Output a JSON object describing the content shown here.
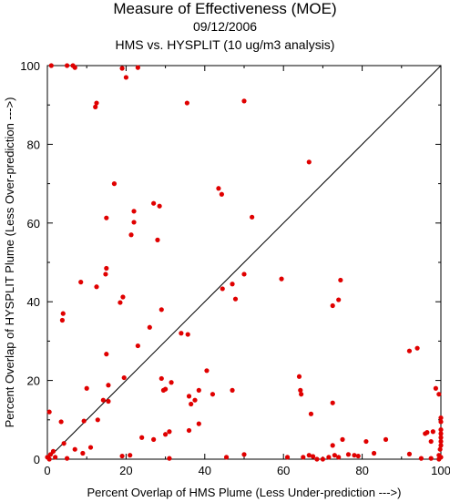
{
  "chart_data": {
    "type": "scatter",
    "title": "Measure of Effectiveness (MOE)",
    "subtitle": "09/12/2006",
    "subtitle2": "HMS vs. HYSPLIT  (10 ug/m3 analysis)",
    "xlabel": "Percent Overlap of HMS Plume (Less Under-prediction --->)",
    "ylabel": "Percent Overlap of HYSPLIT Plume (Less Over-prediction --->)",
    "xlim": [
      0,
      100
    ],
    "ylim": [
      0,
      100
    ],
    "x_ticks": [
      "0",
      "20",
      "40",
      "60",
      "80",
      "100"
    ],
    "y_ticks": [
      "0",
      "20",
      "40",
      "60",
      "80",
      "100"
    ],
    "grid": false,
    "marker_color": "#e00000",
    "reference_line": "y = x",
    "points": [
      [
        1,
        100
      ],
      [
        5,
        100
      ],
      [
        6.5,
        100
      ],
      [
        7,
        99.5
      ],
      [
        19,
        99.3
      ],
      [
        20,
        97
      ],
      [
        23,
        99.5
      ],
      [
        12.5,
        90.5
      ],
      [
        12.2,
        89.5
      ],
      [
        35.5,
        90.5
      ],
      [
        50,
        91
      ],
      [
        66.5,
        75.5
      ],
      [
        17,
        70
      ],
      [
        27,
        65
      ],
      [
        28.5,
        64.3
      ],
      [
        22,
        63
      ],
      [
        15,
        61.3
      ],
      [
        22,
        60.2
      ],
      [
        21.3,
        57
      ],
      [
        28,
        55.7
      ],
      [
        43.5,
        68.8
      ],
      [
        44.3,
        67.3
      ],
      [
        52,
        61.5
      ],
      [
        15,
        48.5
      ],
      [
        14.8,
        47
      ],
      [
        8.5,
        45
      ],
      [
        12.5,
        43.8
      ],
      [
        19.2,
        41.2
      ],
      [
        18.5,
        39.8
      ],
      [
        59.5,
        45.8
      ],
      [
        50,
        47
      ],
      [
        47,
        44.5
      ],
      [
        44.5,
        43.3
      ],
      [
        47.8,
        40.7
      ],
      [
        74.5,
        45.5
      ],
      [
        74,
        40.5
      ],
      [
        72.5,
        39
      ],
      [
        29,
        38
      ],
      [
        4,
        37
      ],
      [
        3.8,
        35.3
      ],
      [
        26,
        33.5
      ],
      [
        34,
        32
      ],
      [
        35.7,
        31.7
      ],
      [
        23,
        28.8
      ],
      [
        15,
        26.7
      ],
      [
        92,
        27.5
      ],
      [
        94,
        28.2
      ],
      [
        40.5,
        22.5
      ],
      [
        38.5,
        17.5
      ],
      [
        42,
        16.5
      ],
      [
        47,
        17.5
      ],
      [
        19.5,
        20.7
      ],
      [
        29,
        20.5
      ],
      [
        31.5,
        19.5
      ],
      [
        30,
        17.8
      ],
      [
        29.5,
        17.5
      ],
      [
        36,
        16
      ],
      [
        37.5,
        15
      ],
      [
        36.5,
        14
      ],
      [
        15.5,
        14.7
      ],
      [
        14.2,
        15
      ],
      [
        10,
        18
      ],
      [
        15.5,
        18.8
      ],
      [
        64,
        21
      ],
      [
        64.3,
        17.5
      ],
      [
        64.5,
        16.5
      ],
      [
        72.5,
        14.3
      ],
      [
        98.7,
        18
      ],
      [
        99.5,
        16.5
      ],
      [
        0.5,
        12
      ],
      [
        12.8,
        10
      ],
      [
        9.3,
        9.7
      ],
      [
        3.5,
        9.5
      ],
      [
        11,
        3
      ],
      [
        4.2,
        4
      ],
      [
        1.5,
        2
      ],
      [
        5,
        0.2
      ],
      [
        0.5,
        0
      ],
      [
        0,
        0.5
      ],
      [
        0.8,
        1.2
      ],
      [
        9,
        1.5
      ],
      [
        19,
        0.8
      ],
      [
        21,
        1
      ],
      [
        24,
        5.5
      ],
      [
        27,
        5
      ],
      [
        30,
        6.3
      ],
      [
        31,
        7
      ],
      [
        36,
        7.3
      ],
      [
        38.5,
        9
      ],
      [
        31,
        0.2
      ],
      [
        45.5,
        0.5
      ],
      [
        50,
        1.2
      ],
      [
        61,
        0.5
      ],
      [
        65,
        0.5
      ],
      [
        66.5,
        1
      ],
      [
        67.5,
        0.7
      ],
      [
        68.5,
        0
      ],
      [
        70,
        0
      ],
      [
        71.5,
        0.5
      ],
      [
        73,
        1
      ],
      [
        74,
        0.5
      ],
      [
        76.5,
        1.2
      ],
      [
        78,
        1
      ],
      [
        79,
        0.8
      ],
      [
        83,
        1.5
      ],
      [
        67,
        11.5
      ],
      [
        72.5,
        3.5
      ],
      [
        75,
        5
      ],
      [
        81,
        4.5
      ],
      [
        86,
        5
      ],
      [
        92,
        1.3
      ],
      [
        95,
        0.2
      ],
      [
        96,
        6.5
      ],
      [
        96.5,
        6.8
      ],
      [
        97.5,
        4.5
      ],
      [
        97.5,
        0.2
      ],
      [
        98,
        7
      ],
      [
        99.5,
        1
      ],
      [
        99.8,
        2.5
      ],
      [
        100,
        3.5
      ],
      [
        100,
        4.5
      ],
      [
        100,
        5.5
      ],
      [
        100,
        6.5
      ],
      [
        100,
        7.5
      ],
      [
        100,
        9.5
      ],
      [
        100,
        10.5
      ],
      [
        100,
        0.5
      ],
      [
        99.5,
        0
      ],
      [
        7,
        2.5
      ],
      [
        2,
        0.5
      ]
    ]
  }
}
